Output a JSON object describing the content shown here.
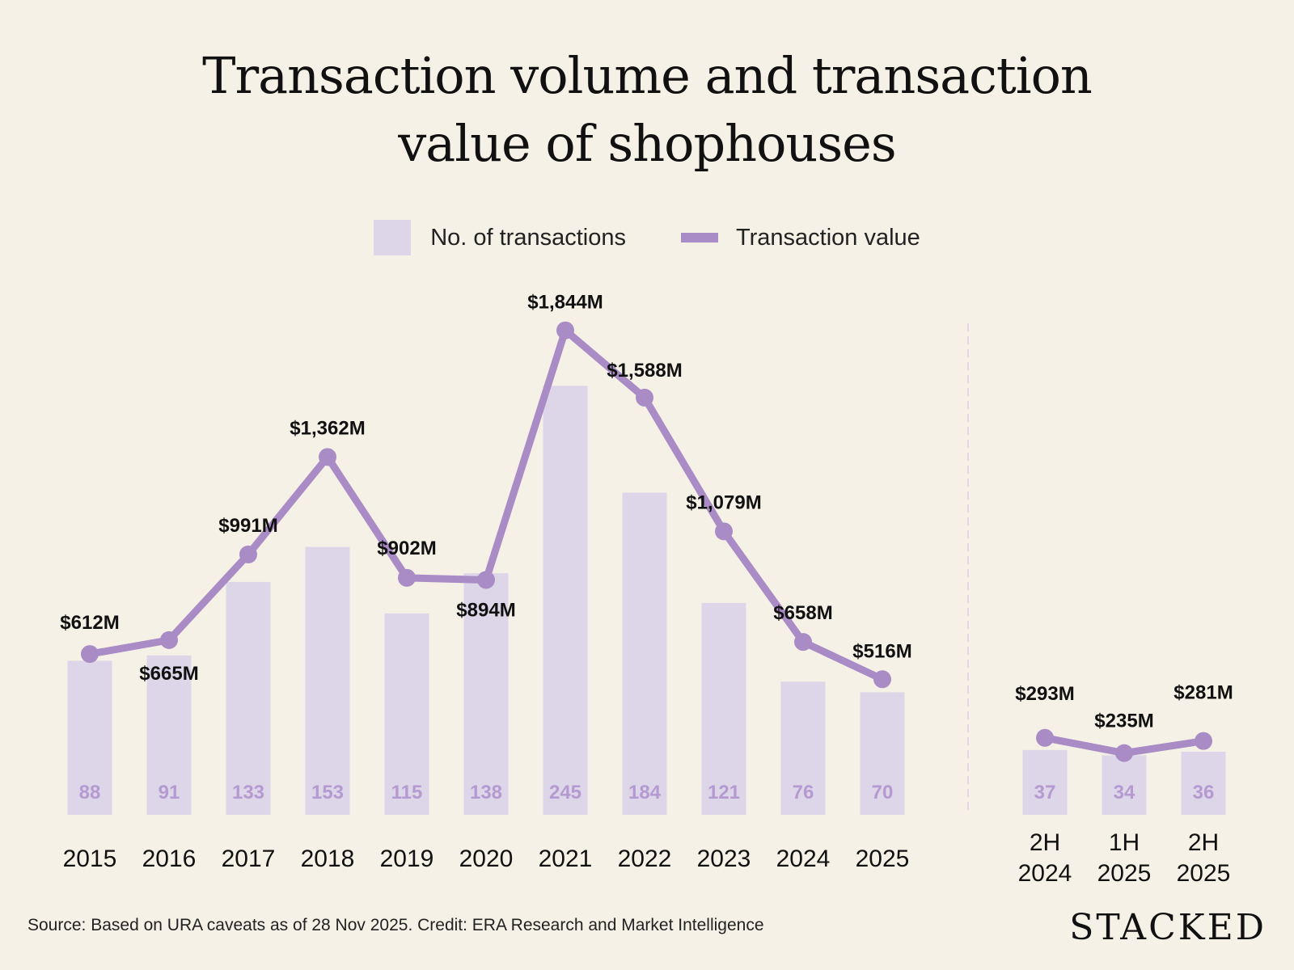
{
  "chart_data": {
    "type": "bar+line",
    "title": "Transaction volume and transaction value of shophouses",
    "title_lines": [
      "Transaction volume and transaction",
      "value of shophouses"
    ],
    "legend": {
      "bars": "No. of transactions",
      "line": "Transaction value",
      "placement": "top"
    },
    "categories": [
      "2015",
      "2016",
      "2017",
      "2018",
      "2019",
      "2020",
      "2021",
      "2022",
      "2023",
      "2024",
      "2025"
    ],
    "transactions": [
      88,
      91,
      133,
      153,
      115,
      138,
      245,
      184,
      121,
      76,
      70
    ],
    "value_musd": [
      612,
      665,
      991,
      1362,
      902,
      894,
      1844,
      1588,
      1079,
      658,
      516
    ],
    "value_labels": [
      "$612M",
      "$665M",
      "$991M",
      "$1,362M",
      "$902M",
      "$894M",
      "$1,844M",
      "$1,588M",
      "$1,079M",
      "$658M",
      "$516M"
    ],
    "half_year": {
      "categories": [
        [
          "2H",
          "2024"
        ],
        [
          "1H",
          "2025"
        ],
        [
          "2H",
          "2025"
        ]
      ],
      "transactions": [
        37,
        34,
        36
      ],
      "value_musd": [
        293,
        235,
        281
      ],
      "value_labels": [
        "$293M",
        "$235M",
        "$281M"
      ]
    },
    "colors": {
      "background": "#f5f1e6",
      "bars": "#ddd6e8",
      "line": "#a98bc6",
      "count_text": "#b49ad0"
    }
  },
  "source": "Source: Based on URA caveats as of 28 Nov 2025. Credit: ERA Research and Market Intelligence",
  "logo": "STACKED"
}
